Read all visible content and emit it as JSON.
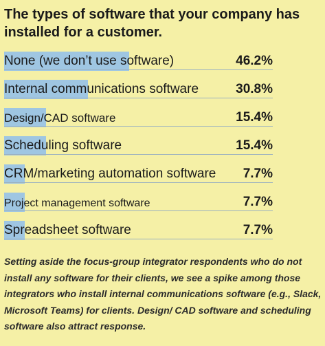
{
  "chart_data": {
    "type": "bar",
    "title": "The types of software that your company has installed for a customer.",
    "categories": [
      "None (we don’t use software)",
      "Internal communications software",
      "Design/CAD software",
      "Scheduling software",
      "CRM/marketing automation software",
      "Project management software",
      "Spreadsheet software"
    ],
    "values": [
      46.2,
      30.8,
      15.4,
      15.4,
      7.7,
      7.7,
      7.7
    ],
    "value_labels": [
      "46.2%",
      "30.8%",
      "15.4%",
      "15.4%",
      "7.7%",
      "7.7%",
      "7.7%"
    ],
    "unit": "%",
    "xlim": [
      0,
      100
    ],
    "grid": false,
    "bar_color": "#9fc6e2"
  },
  "caption": "Setting aside the focus-group integrator respondents who do not install any software for their clients, we see a spike among those integrators who install internal communications software (e.g., Slack, Microsoft Teams) for clients. Design/ CAD software and scheduling software also attract response.",
  "colors": {
    "background": "#f5f0a6",
    "bar": "#9fc6e2",
    "text": "#1a1a1a"
  }
}
